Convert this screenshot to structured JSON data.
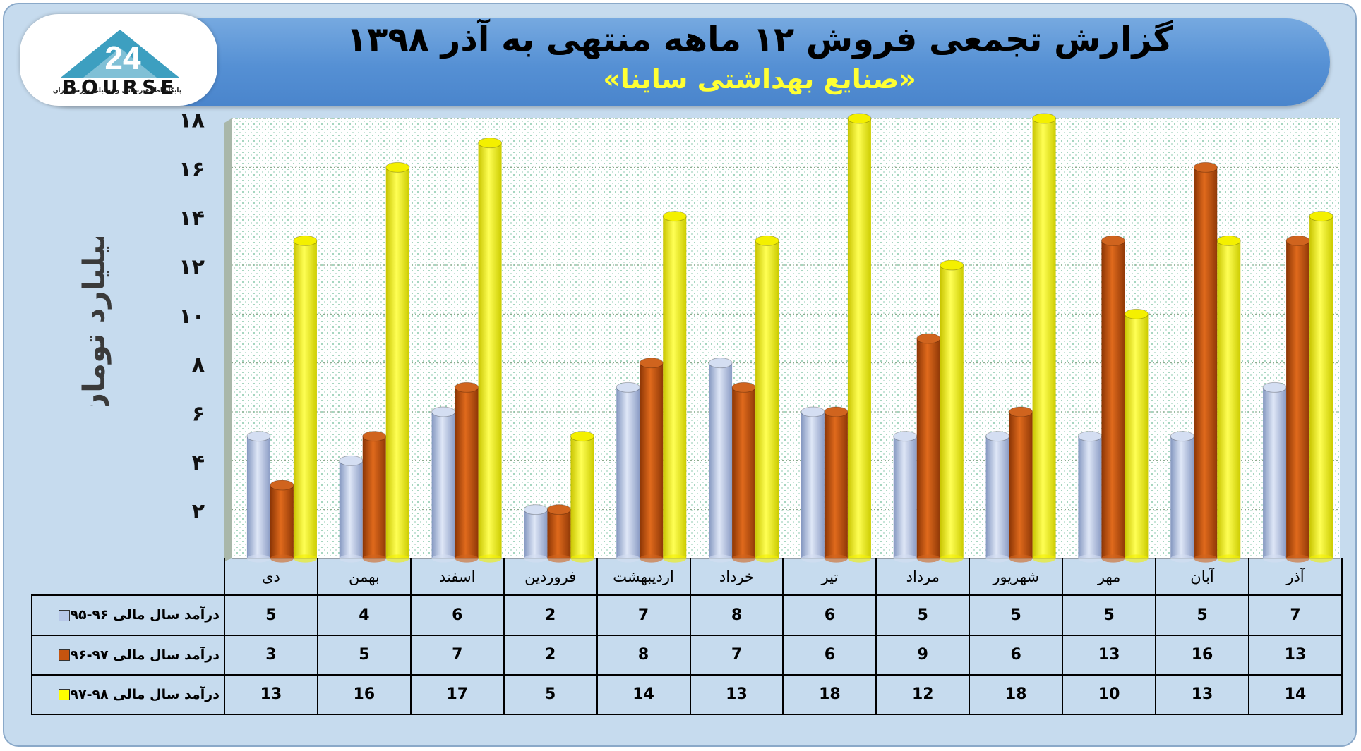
{
  "header": {
    "title": "گزارش تجمعی فروش ۱۲ ماهه منتهی به آذر ۱۳۹۸",
    "subtitle": "«صنایع بهداشتی ساینا»"
  },
  "logo": {
    "text": "BOURSE",
    "number": "24",
    "caption": "پایگاه اطلاع رسانی و تحلیلی بورس ایران"
  },
  "colors": {
    "series_1": "#b7c8e8",
    "series_2": "#c5540f",
    "series_3": "#ffff00",
    "plot_bg": "#ffffff",
    "dots": "#2a9d6a"
  },
  "chart_data": {
    "type": "bar",
    "ylabel": "میلیارد تومان",
    "ylim": [
      0,
      18
    ],
    "yticks": [
      "۲",
      "۴",
      "۶",
      "۸",
      "۱۰",
      "۱۲",
      "۱۴",
      "۱۶",
      "۱۸"
    ],
    "yticks_values": [
      2,
      4,
      6,
      8,
      10,
      12,
      14,
      16,
      18
    ],
    "categories": [
      "دی",
      "بهمن",
      "اسفند",
      "فروردین",
      "اردیبهشت",
      "خرداد",
      "تیر",
      "مرداد",
      "شهریور",
      "مهر",
      "آبان",
      "آذر"
    ],
    "series": [
      {
        "name": "درآمد سال مالی ۹۶-۹۵",
        "values": [
          5,
          4,
          6,
          2,
          7,
          8,
          6,
          5,
          5,
          5,
          5,
          7
        ]
      },
      {
        "name": "درآمد سال مالی ۹۷-۹۶",
        "values": [
          3,
          5,
          7,
          2,
          8,
          7,
          6,
          9,
          6,
          13,
          16,
          13
        ]
      },
      {
        "name": "درآمد سال مالی ۹۸-۹۷",
        "values": [
          13,
          16,
          17,
          5,
          14,
          13,
          18,
          12,
          18,
          10,
          13,
          14
        ]
      }
    ],
    "grid": true,
    "legend": "data-table"
  }
}
